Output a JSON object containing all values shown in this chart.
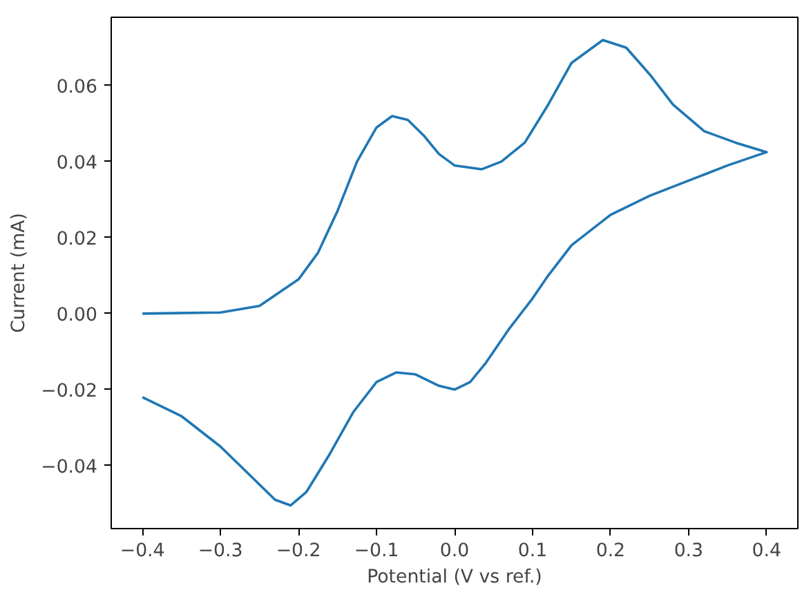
{
  "chart_data": {
    "type": "line",
    "xlabel": "Potential (V vs ref.)",
    "ylabel": "Current (mA)",
    "xlim": [
      -0.44,
      0.44
    ],
    "ylim": [
      -0.0566,
      0.078
    ],
    "xticks": [
      {
        "value": -0.4,
        "label": "−0.4"
      },
      {
        "value": -0.3,
        "label": "−0.3"
      },
      {
        "value": -0.2,
        "label": "−0.2"
      },
      {
        "value": -0.1,
        "label": "−0.1"
      },
      {
        "value": 0.0,
        "label": "0.0"
      },
      {
        "value": 0.1,
        "label": "0.1"
      },
      {
        "value": 0.2,
        "label": "0.2"
      },
      {
        "value": 0.3,
        "label": "0.3"
      },
      {
        "value": 0.4,
        "label": "0.4"
      }
    ],
    "yticks": [
      {
        "value": -0.04,
        "label": "−0.04"
      },
      {
        "value": -0.02,
        "label": "−0.02"
      },
      {
        "value": 0.0,
        "label": "0.00"
      },
      {
        "value": 0.02,
        "label": "0.02"
      },
      {
        "value": 0.04,
        "label": "0.04"
      },
      {
        "value": 0.06,
        "label": "0.06"
      }
    ],
    "grid": false,
    "marker": "none",
    "line_style": "solid",
    "series": [
      {
        "color": "#1f77b4",
        "x": [
          -0.4,
          -0.3,
          -0.25,
          -0.2,
          -0.175,
          -0.15,
          -0.125,
          -0.1,
          -0.08,
          -0.06,
          -0.04,
          -0.02,
          0.0,
          0.035,
          0.06,
          0.09,
          0.12,
          0.15,
          0.19,
          0.22,
          0.25,
          0.28,
          0.32,
          0.36,
          0.4,
          0.35,
          0.3,
          0.25,
          0.2,
          0.15,
          0.12,
          0.1,
          0.07,
          0.04,
          0.02,
          0.0,
          -0.02,
          -0.05,
          -0.075,
          -0.1,
          -0.13,
          -0.16,
          -0.19,
          -0.21,
          -0.23,
          -0.26,
          -0.3,
          -0.35,
          -0.4
        ],
        "values": [
          0.0,
          0.0003,
          0.002,
          0.009,
          0.016,
          0.027,
          0.04,
          0.049,
          0.052,
          0.051,
          0.047,
          0.042,
          0.039,
          0.038,
          0.04,
          0.045,
          0.055,
          0.066,
          0.072,
          0.07,
          0.063,
          0.055,
          0.048,
          0.045,
          0.0425,
          0.039,
          0.035,
          0.031,
          0.026,
          0.018,
          0.01,
          0.004,
          -0.004,
          -0.013,
          -0.018,
          -0.02,
          -0.019,
          -0.016,
          -0.0155,
          -0.018,
          -0.026,
          -0.037,
          -0.047,
          -0.0505,
          -0.049,
          -0.043,
          -0.035,
          -0.027,
          -0.022
        ]
      }
    ]
  }
}
